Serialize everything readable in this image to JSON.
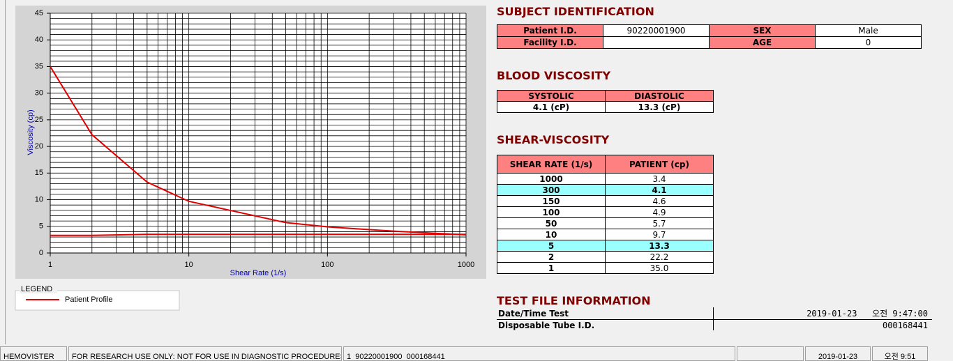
{
  "chart_data": {
    "type": "line",
    "xlabel": "Shear Rate (1/s)",
    "ylabel": "Viscosity (cp)",
    "x": [
      1,
      2,
      5,
      10,
      50,
      100,
      150,
      300,
      1000
    ],
    "series": [
      {
        "name": "Patient Profile",
        "color": "#e00000",
        "values": [
          35.0,
          22.2,
          13.3,
          9.7,
          5.7,
          4.9,
          4.6,
          4.1,
          3.4
        ]
      },
      {
        "color": "#e00000",
        "values": [
          3.3,
          3.3,
          3.5,
          3.5,
          3.5,
          3.5,
          3.5,
          3.5,
          3.5
        ]
      }
    ],
    "xlim": [
      1,
      1000
    ],
    "xticks": [
      1,
      10,
      100,
      1000
    ],
    "xscale": "log",
    "ylim": [
      0,
      45
    ],
    "yticks": [
      0,
      5,
      10,
      15,
      20,
      25,
      30,
      35,
      40,
      45
    ],
    "grid": true,
    "legend_title": "LEGEND"
  },
  "subject": {
    "title": "SUBJECT IDENTIFICATION",
    "rows": [
      [
        {
          "label": "Patient I.D.",
          "value": "90220001900"
        },
        {
          "label": "SEX",
          "value": "Male"
        }
      ],
      [
        {
          "label": "Facility I.D."
        },
        {
          "label": "AGE",
          "value": "0"
        }
      ]
    ]
  },
  "blood": {
    "title": "BLOOD VISCOSITY",
    "headers": [
      "SYSTOLIC",
      "DIASTOLIC"
    ],
    "values": [
      "4.1 (cP)",
      "13.3 (cP)"
    ]
  },
  "shear": {
    "title": "SHEAR-VISCOSITY",
    "headers": [
      "SHEAR RATE (1/s)",
      "PATIENT (cp)"
    ],
    "rows": [
      [
        "1000",
        "3.4"
      ],
      [
        "300",
        "4.1"
      ],
      [
        "150",
        "4.6"
      ],
      [
        "100",
        "4.9"
      ],
      [
        "50",
        "5.7"
      ],
      [
        "10",
        "9.7"
      ],
      [
        "5",
        "13.3"
      ],
      [
        "2",
        "22.2"
      ],
      [
        "1",
        "35.0"
      ]
    ],
    "highlight": [
      1,
      6
    ]
  },
  "testfile": {
    "title": "TEST FILE INFORMATION",
    "rows": [
      [
        "Date/Time Test",
        "2019-01-23   오전 9:47:00"
      ],
      [
        "Disposable Tube I.D.",
        "000168441"
      ]
    ]
  },
  "status": [
    "HEMOVISTER",
    "FOR RESEARCH USE ONLY: NOT FOR USE IN DIAGNOSTIC PROCEDURES",
    "1  90220001900  000168441",
    "2019-01-23",
    "오전 9:51"
  ]
}
